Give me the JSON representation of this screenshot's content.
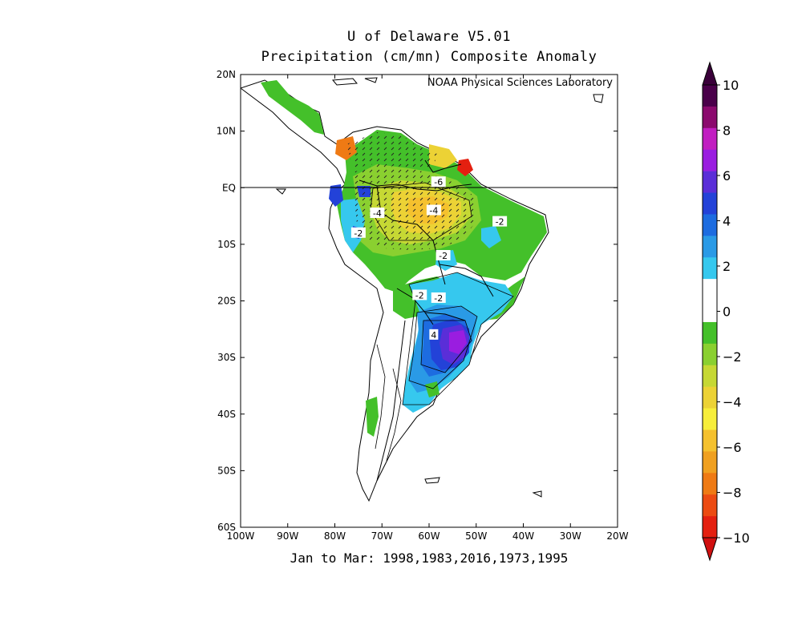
{
  "title": "U of Delaware V5.01",
  "subtitle": "Precipitation (cm/mn) Composite Anomaly",
  "credit": "NOAA Physical Sciences Laboratory",
  "bottom_label": "Jan to Mar: 1998,1983,2016,1973,1995",
  "lat_labels": [
    "20N",
    "10N",
    "EQ",
    "10S",
    "20S",
    "30S",
    "40S",
    "50S",
    "60S"
  ],
  "lat_values": [
    20,
    10,
    0,
    -10,
    -20,
    -30,
    -40,
    -50,
    -60
  ],
  "lon_labels": [
    "100W",
    "90W",
    "80W",
    "70W",
    "60W",
    "50W",
    "40W",
    "30W",
    "20W"
  ],
  "lon_values": [
    -100,
    -90,
    -80,
    -70,
    -60,
    -50,
    -40,
    -30,
    -20
  ],
  "map_extent": {
    "lon": [
      -100,
      -20
    ],
    "lat": [
      -60,
      20
    ]
  },
  "contour_labels": [
    {
      "text": "-6",
      "lon": -58,
      "lat": 1
    },
    {
      "text": "-4",
      "lon": -71,
      "lat": -4.5
    },
    {
      "text": "-4",
      "lon": -59,
      "lat": -4
    },
    {
      "text": "-2",
      "lon": -45,
      "lat": -6
    },
    {
      "text": "-2",
      "lon": -75,
      "lat": -8
    },
    {
      "text": "-2",
      "lon": -57,
      "lat": -12
    },
    {
      "text": "-2",
      "lon": -62,
      "lat": -19
    },
    {
      "text": "-2",
      "lon": -58,
      "lat": -19.5
    },
    {
      "text": "4",
      "lon": -59,
      "lat": -26
    }
  ],
  "colorbar": {
    "tick_labels": [
      "10",
      "8",
      "6",
      "4",
      "2",
      "0",
      "−2",
      "−4",
      "−6",
      "−8",
      "−10"
    ],
    "tick_values": [
      10,
      8,
      6,
      4,
      2,
      0,
      -2,
      -4,
      -6,
      -8,
      -10
    ],
    "colors_top_to_bottom": [
      "#4a004a",
      "#8b0a6e",
      "#c11ec1",
      "#9a1de0",
      "#5a2ed8",
      "#2342d8",
      "#1d6ce0",
      "#2a9ae6",
      "#36c8ee",
      "#ffffff",
      "#ffffff",
      "#44c02a",
      "#8ad030",
      "#c6d834",
      "#ecd235",
      "#f7ee3a",
      "#f5c12e",
      "#f0a020",
      "#ef7a14",
      "#ec4b12",
      "#e42010"
    ],
    "arrow_top_color": "#3a003a",
    "arrow_bottom_color": "#d01010"
  }
}
